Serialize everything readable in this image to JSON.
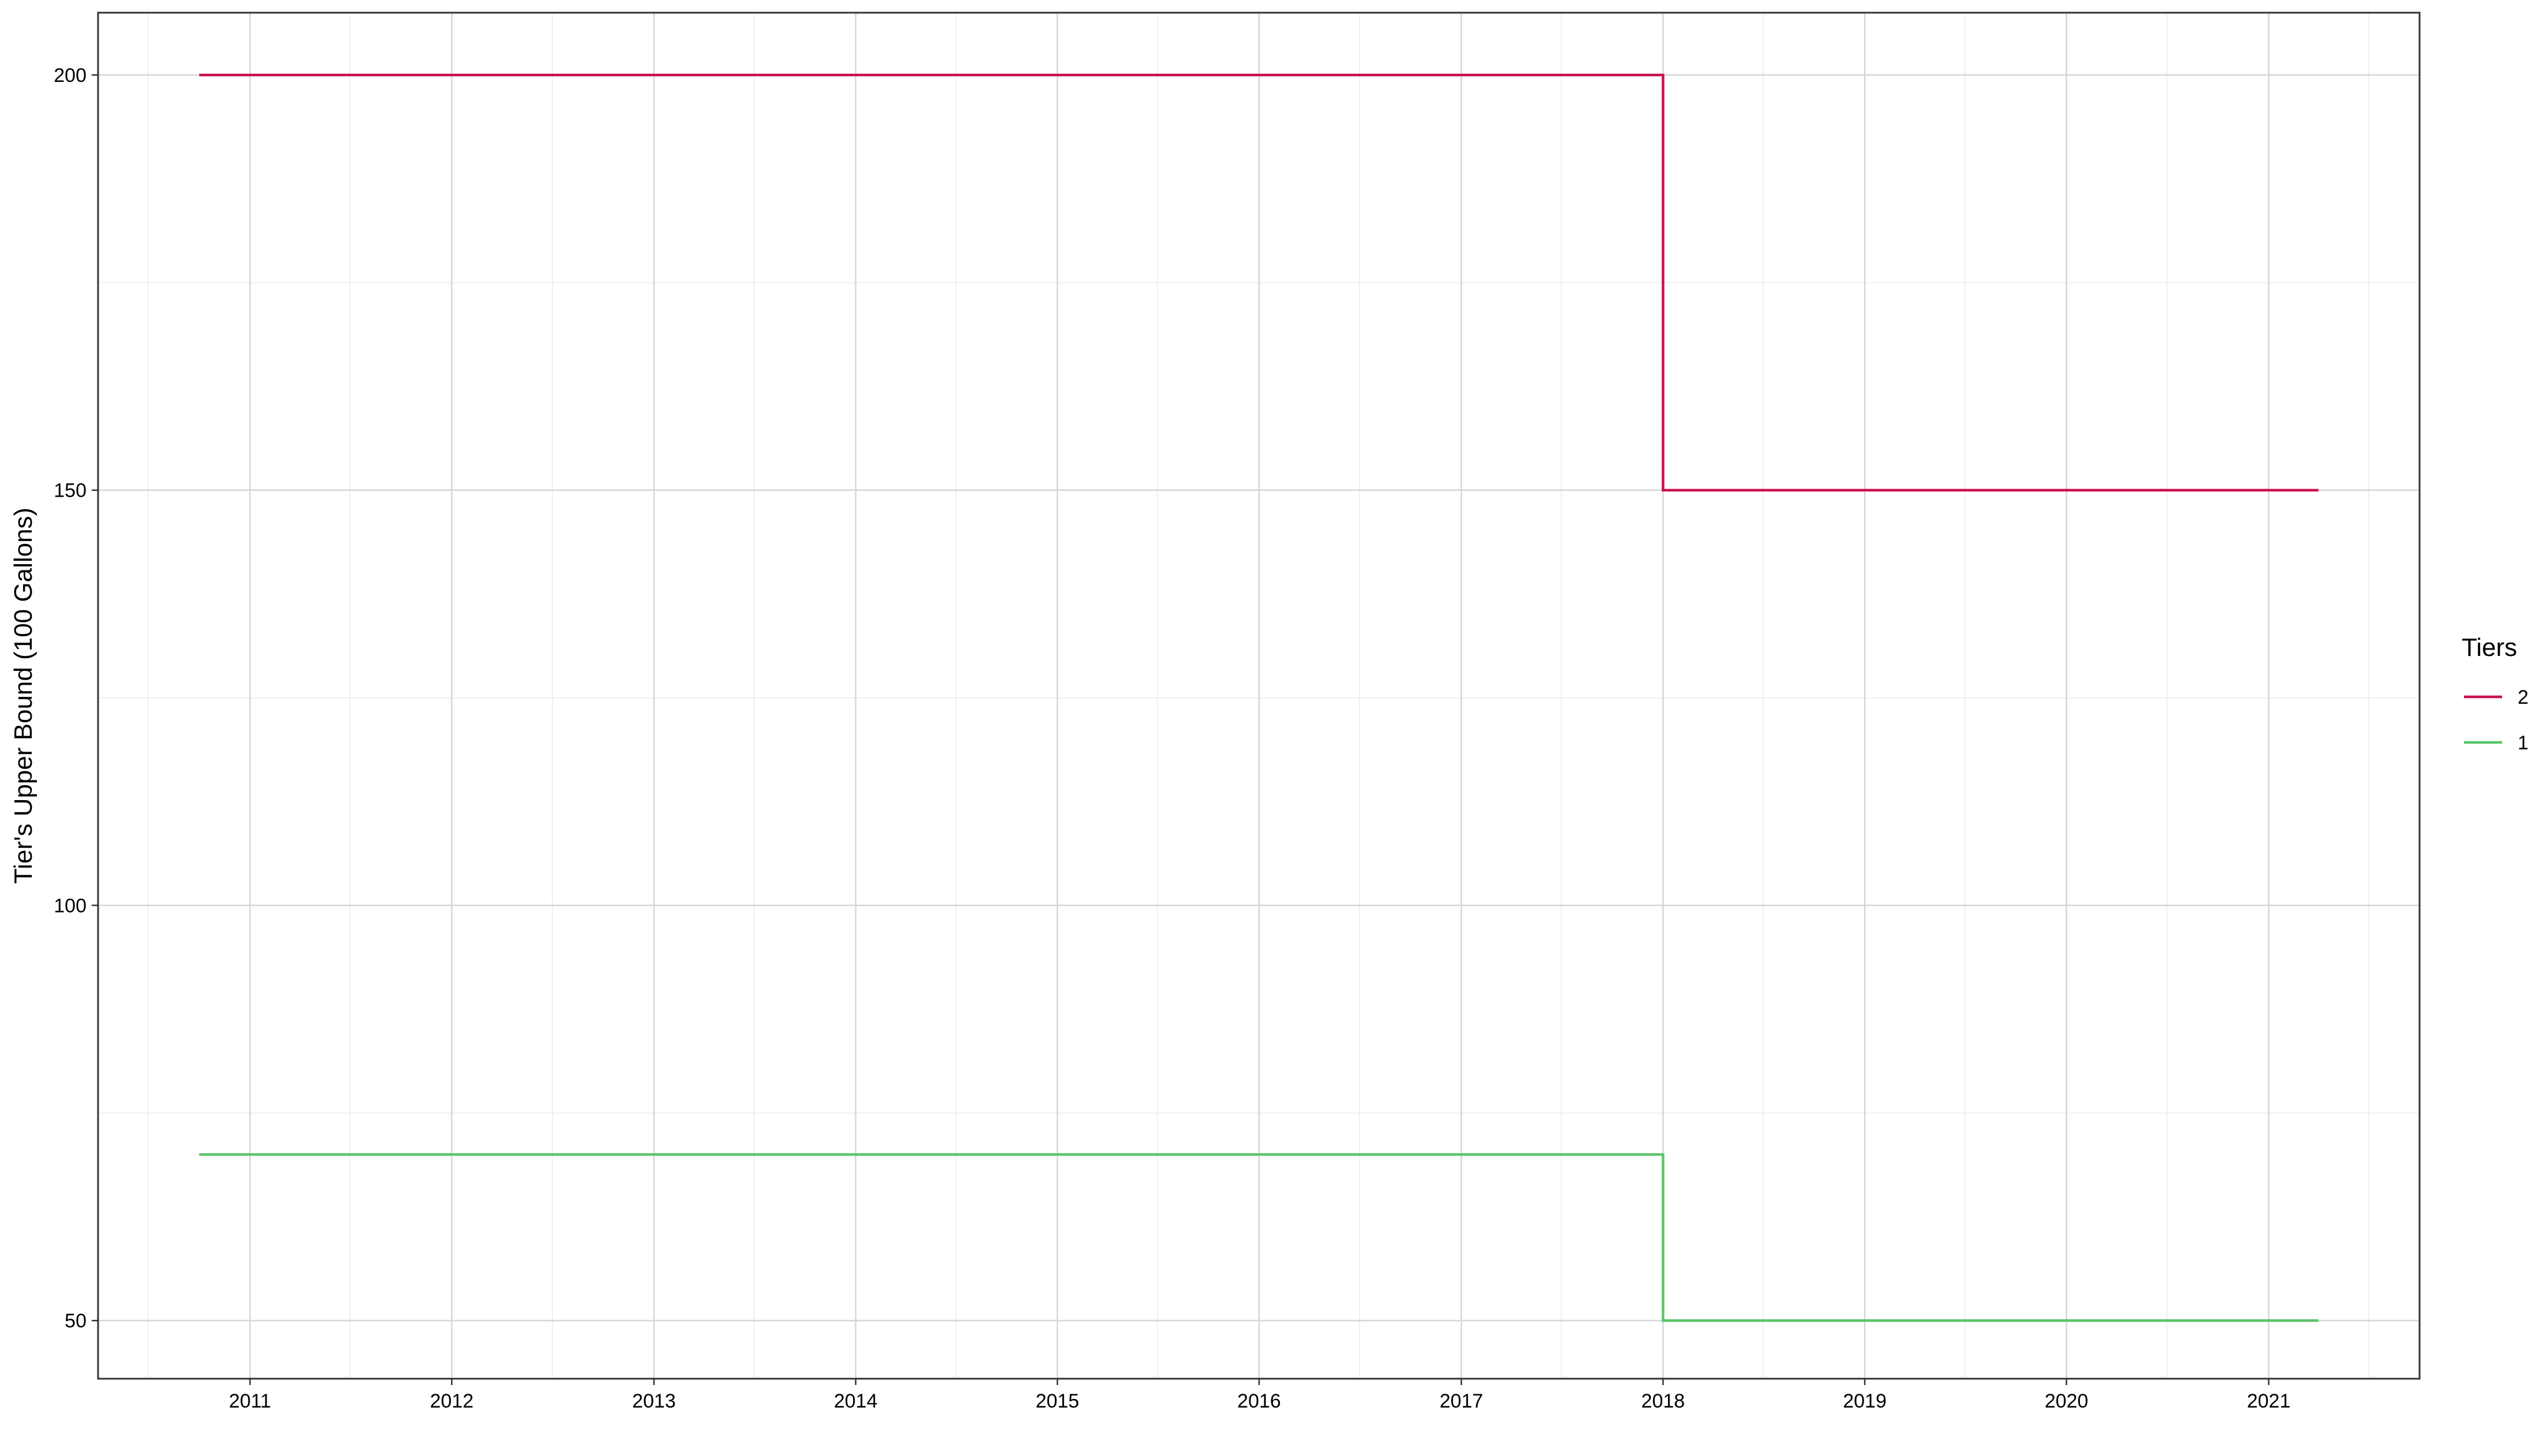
{
  "chart_data": {
    "type": "line",
    "step": true,
    "title": "",
    "xlabel": "",
    "ylabel": "Tier's Upper Bound (100 Gallons)",
    "x_type": "date",
    "xlim": [
      "2010-04-01",
      "2021-10-01"
    ],
    "ylim": [
      43,
      207.5
    ],
    "x_ticks": [
      "2011-01-01",
      "2012-01-01",
      "2013-01-01",
      "2014-01-01",
      "2015-01-01",
      "2016-01-01",
      "2017-01-01",
      "2018-01-01",
      "2019-01-01",
      "2020-01-01",
      "2021-01-01"
    ],
    "x_tick_labels": [
      "2011",
      "2012",
      "2013",
      "2014",
      "2015",
      "2016",
      "2017",
      "2018",
      "2019",
      "2020",
      "2021"
    ],
    "y_ticks": [
      50,
      100,
      150,
      200
    ],
    "y_tick_labels": [
      "50",
      "100",
      "150",
      "200"
    ],
    "grid": true,
    "legend": {
      "title": "Tiers",
      "position": "right",
      "entries": [
        "2",
        "1"
      ]
    },
    "series": [
      {
        "name": "2",
        "color": "#c9104f",
        "points": [
          {
            "x": "2010-10-01",
            "y": 200
          },
          {
            "x": "2018-01-01",
            "y": 150
          },
          {
            "x": "2021-04-01",
            "y": 150
          }
        ]
      },
      {
        "name": "1",
        "color": "#5cc46a",
        "points": [
          {
            "x": "2010-10-01",
            "y": 70
          },
          {
            "x": "2018-01-01",
            "y": 50
          },
          {
            "x": "2021-04-01",
            "y": 50
          }
        ]
      }
    ]
  }
}
